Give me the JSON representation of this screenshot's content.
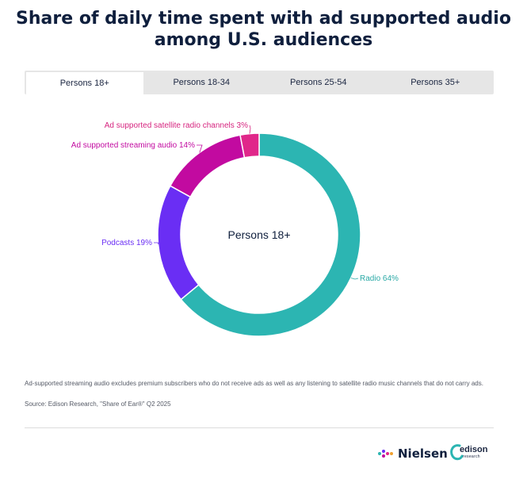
{
  "title": "Share of daily time spent with ad supported audio among U.S. audiences",
  "tabs": [
    {
      "label": "Persons 18+",
      "active": true
    },
    {
      "label": "Persons 18-34",
      "active": false
    },
    {
      "label": "Persons 25-54",
      "active": false
    },
    {
      "label": "Persons 35+",
      "active": false
    }
  ],
  "chart_data": {
    "type": "pie",
    "center_label": "Persons 18+",
    "categories": [
      "Radio",
      "Podcasts",
      "Ad supported streaming audio",
      "Ad supported satellite radio channels"
    ],
    "values": [
      64,
      19,
      14,
      3
    ],
    "labels": [
      "Radio 64%",
      "Podcasts 19%",
      "Ad supported streaming audio 14%",
      "Ad supported satellite radio channels 3%"
    ],
    "colors": [
      "#2cb5b2",
      "#6a2ef4",
      "#c20aa0",
      "#e0278a"
    ],
    "label_colors": [
      "#2aa9a6",
      "#6a2ef4",
      "#c20aa0",
      "#d6247f"
    ]
  },
  "footnote": "Ad-supported streaming audio excludes premium subscribers who do not receive ads as well as any listening to satellite radio music channels that do not carry ads.",
  "source": "Source: Edison Research, \"Share of Ear®\" Q2 2025",
  "logos": {
    "nielsen": "Nielsen",
    "edison": "edison",
    "edison_sub": "research"
  }
}
